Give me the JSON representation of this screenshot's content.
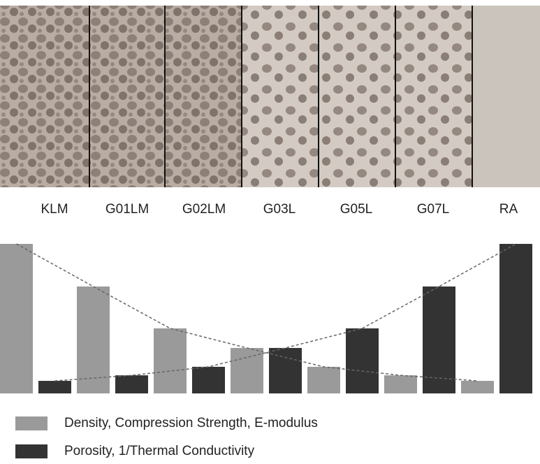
{
  "chart_data": {
    "type": "bar",
    "categories": [
      "KLM",
      "G01LM",
      "G02LM",
      "G03L",
      "G05L",
      "G07L",
      "RA"
    ],
    "series": [
      {
        "name": "Density, Compression Strength, E-modulus",
        "color": "#9a9a9a",
        "values": [
          100,
          71.5,
          43.5,
          30.4,
          17.8,
          12.1,
          8.4
        ]
      },
      {
        "name": "Porosity, 1/Thermal Conductivity",
        "color": "#333333",
        "values": [
          8.4,
          12.1,
          17.8,
          30.4,
          43.5,
          71.5,
          100
        ]
      }
    ],
    "grid": false
  }
}
